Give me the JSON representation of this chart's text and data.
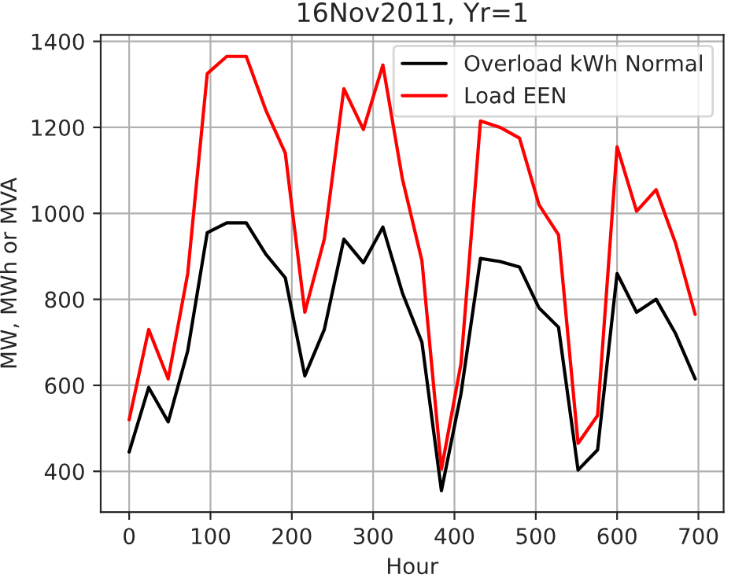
{
  "chart_data": {
    "type": "line",
    "title": "16Nov2011, Yr=1",
    "xlabel": "Hour",
    "ylabel": "MW, MWh or MVA",
    "x": [
      0,
      24,
      48,
      72,
      96,
      120,
      144,
      168,
      192,
      216,
      240,
      264,
      288,
      312,
      336,
      360,
      384,
      408,
      432,
      456,
      480,
      504,
      528,
      552,
      576,
      600,
      624,
      648,
      672,
      696
    ],
    "series": [
      {
        "name": "Overload kWh Normal",
        "color": "#000000",
        "values": [
          445,
          595,
          515,
          680,
          955,
          978,
          978,
          905,
          850,
          622,
          730,
          940,
          885,
          968,
          815,
          700,
          355,
          580,
          895,
          888,
          875,
          780,
          735,
          403,
          450,
          860,
          770,
          800,
          720,
          615
        ]
      },
      {
        "name": "Load EEN",
        "color": "#ff0000",
        "values": [
          520,
          730,
          615,
          860,
          1325,
          1365,
          1365,
          1240,
          1140,
          770,
          940,
          1290,
          1195,
          1345,
          1080,
          890,
          405,
          650,
          1215,
          1200,
          1175,
          1020,
          950,
          465,
          530,
          1155,
          1005,
          1055,
          930,
          765
        ]
      }
    ],
    "xlim": [
      -35,
      731
    ],
    "ylim": [
      305,
      1415
    ],
    "xticks": [
      0,
      100,
      200,
      300,
      400,
      500,
      600,
      700
    ],
    "yticks": [
      400,
      600,
      800,
      1000,
      1200,
      1400
    ],
    "grid": true,
    "legend": "top right"
  }
}
